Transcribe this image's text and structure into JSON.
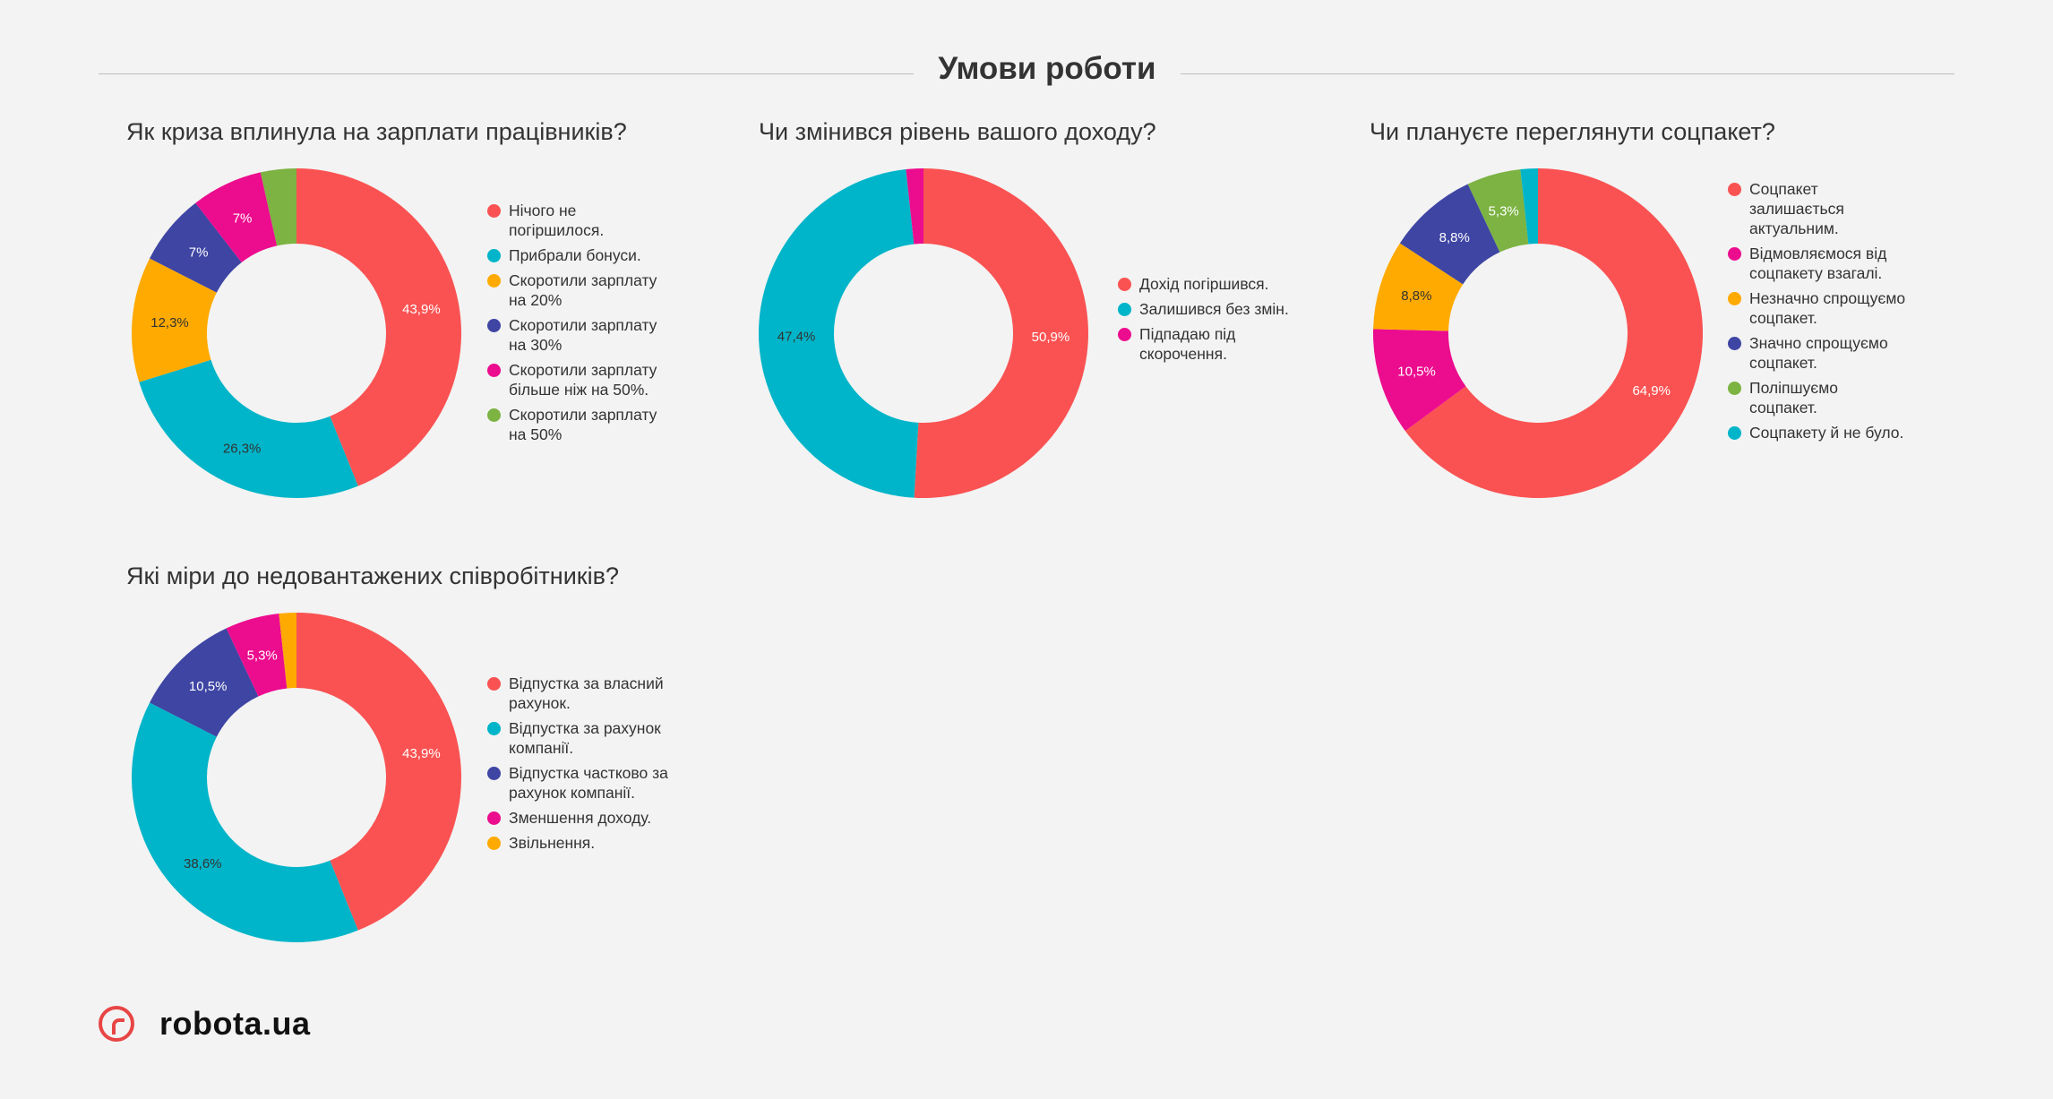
{
  "header": {
    "title": "Умови роботи"
  },
  "colors": {
    "red": "#fa5252",
    "teal": "#00b5c9",
    "orange": "#ffaa00",
    "navy": "#3e45a3",
    "magenta": "#ec0c8e",
    "green": "#7cb342"
  },
  "chart_data": [
    {
      "type": "pie",
      "title": "Як криза вплинула на зарплати працівників?",
      "legend_position": "right",
      "slices": [
        {
          "label": "Нічого не погіршилося.",
          "value": 43.9,
          "display": "43,9%",
          "color": "#fa5252"
        },
        {
          "label": "Прибрали бонуси.",
          "value": 26.3,
          "display": "26,3%",
          "color": "#00b5c9"
        },
        {
          "label": "Скоротили зарплату на 20%",
          "value": 12.3,
          "display": "12,3%",
          "color": "#ffaa00"
        },
        {
          "label": "Скоротили зарплату на 30%",
          "value": 7,
          "display": "7%",
          "color": "#3e45a3"
        },
        {
          "label": "Скоротили зарплату більше ніж на 50%.",
          "value": 7,
          "display": "7%",
          "color": "#ec0c8e"
        },
        {
          "label": "Скоротили зарплату на 50%",
          "value": 3.5,
          "display": "",
          "color": "#7cb342"
        }
      ]
    },
    {
      "type": "pie",
      "title": "Чи змінився рівень вашого доходу?",
      "legend_position": "right",
      "slices": [
        {
          "label": "Дохід погіршився.",
          "value": 50.9,
          "display": "50,9%",
          "color": "#fa5252"
        },
        {
          "label": "Залишився без змін.",
          "value": 47.4,
          "display": "47,4%",
          "color": "#00b5c9"
        },
        {
          "label": "Підпадаю під скорочення.",
          "value": 1.7,
          "display": "",
          "color": "#ec0c8e"
        }
      ]
    },
    {
      "type": "pie",
      "title": "Чи плануєте переглянути соцпакет?",
      "legend_position": "right",
      "slices": [
        {
          "label": "Соцпакет залишається актуальним.",
          "value": 64.9,
          "display": "64,9%",
          "color": "#fa5252"
        },
        {
          "label": "Відмовляємося від соцпакету взагалі.",
          "value": 10.5,
          "display": "10,5%",
          "color": "#ec0c8e"
        },
        {
          "label": "Незначно спрощуємо соцпакет.",
          "value": 8.8,
          "display": "8,8%",
          "color": "#ffaa00"
        },
        {
          "label": "Значно спрощуємо соцпакет.",
          "value": 8.8,
          "display": "8,8%",
          "color": "#3e45a3"
        },
        {
          "label": "Поліпшуємо соцпакет.",
          "value": 5.3,
          "display": "5,3%",
          "color": "#7cb342"
        },
        {
          "label": "Соцпакету й не було.",
          "value": 1.7,
          "display": "",
          "color": "#00b5c9"
        }
      ]
    },
    {
      "type": "pie",
      "title": "Які міри до недовантажених співробітників?",
      "legend_position": "right",
      "slices": [
        {
          "label": "Відпустка за власний рахунок.",
          "value": 43.9,
          "display": "43,9%",
          "color": "#fa5252"
        },
        {
          "label": "Відпустка за рахунок компанії.",
          "value": 38.6,
          "display": "38,6%",
          "color": "#00b5c9"
        },
        {
          "label": "Відпустка частково за рахунок компанії.",
          "value": 10.5,
          "display": "10,5%",
          "color": "#3e45a3"
        },
        {
          "label": "Зменшення доходу.",
          "value": 5.3,
          "display": "5,3%",
          "color": "#ec0c8e"
        },
        {
          "label": "Звільнення.",
          "value": 1.7,
          "display": "",
          "color": "#ffaa00"
        }
      ]
    }
  ],
  "logo": {
    "text": "robota.ua"
  }
}
